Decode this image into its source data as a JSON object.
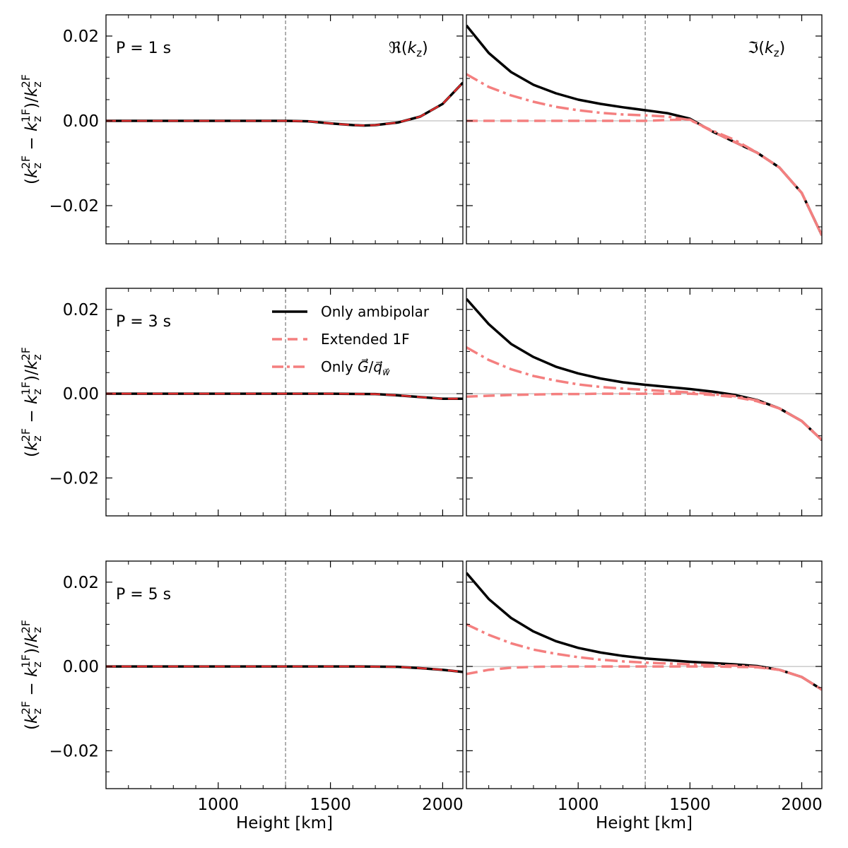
{
  "chart_data": {
    "type": "line",
    "xlabel": "Height [km]",
    "ylabel": "(k_z^2F − k_z^1F)/k_z^2F",
    "xlim": [
      500,
      2090
    ],
    "ylim": [
      -0.029,
      0.025
    ],
    "xticks": [
      "1000",
      "1500",
      "2000"
    ],
    "yticks": [
      "0.02",
      "0.00",
      "−0.02"
    ],
    "vline_x": 1300,
    "column_titles": [
      "ℜ(k_z)",
      "ℑ(k_z)"
    ],
    "legend": [
      "Only ambipolar",
      "Extended 1F",
      "Only G/q_w"
    ],
    "colors": {
      "ambipolar": "#000000",
      "extended": "#f47f7f",
      "onlyG": "#f47f7f",
      "real_overlay": "#d92b2b"
    },
    "rows": [
      {
        "period_label": "P = 1 s",
        "real": {
          "x": [
            500,
            1300,
            1400,
            1500,
            1600,
            1650,
            1700,
            1800,
            1900,
            2000,
            2090
          ],
          "ambipolar": [
            0,
            0,
            -0.0001,
            -0.0006,
            -0.001,
            -0.0011,
            -0.001,
            -0.0004,
            0.001,
            0.004,
            0.009
          ]
        },
        "imag": {
          "x": [
            500,
            600,
            700,
            800,
            900,
            1000,
            1100,
            1200,
            1300,
            1400,
            1500,
            1600,
            1700,
            1800,
            1900,
            2000,
            2090
          ],
          "ambipolar": [
            0.0225,
            0.016,
            0.0115,
            0.0085,
            0.0065,
            0.005,
            0.004,
            0.0032,
            0.0025,
            0.0018,
            0.0005,
            -0.0025,
            -0.005,
            -0.0075,
            -0.011,
            -0.017,
            -0.027
          ],
          "extended": [
            0,
            0,
            0,
            0,
            0,
            0,
            0,
            0,
            0,
            0.0002,
            0.0003,
            -0.0025,
            -0.005,
            -0.0075,
            -0.011,
            -0.017,
            -0.027
          ],
          "onlyG": [
            0.011,
            0.008,
            0.006,
            0.0045,
            0.0033,
            0.0025,
            0.0019,
            0.0015,
            0.0013,
            0.001,
            0.0002,
            -0.0023,
            -0.0045,
            -0.0075,
            -0.011,
            -0.017,
            -0.027
          ]
        }
      },
      {
        "period_label": "P = 3 s",
        "real": {
          "x": [
            500,
            1500,
            1700,
            1800,
            1900,
            2000,
            2090
          ],
          "ambipolar": [
            0,
            0,
            -0.0001,
            -0.0004,
            -0.0008,
            -0.0012,
            -0.0012
          ]
        },
        "imag": {
          "x": [
            500,
            600,
            700,
            800,
            900,
            1000,
            1100,
            1200,
            1300,
            1400,
            1500,
            1600,
            1700,
            1800,
            1900,
            2000,
            2090
          ],
          "ambipolar": [
            0.0225,
            0.0165,
            0.0118,
            0.0087,
            0.0064,
            0.0048,
            0.0036,
            0.0027,
            0.0021,
            0.0016,
            0.0011,
            0.0005,
            -0.0003,
            -0.0015,
            -0.0035,
            -0.0065,
            -0.011
          ],
          "extended": [
            -0.0007,
            -0.0005,
            -0.0003,
            -0.0002,
            -0.0001,
            -0.0001,
            0,
            0,
            0,
            0,
            0,
            -0.0003,
            -0.0008,
            -0.0018,
            -0.0035,
            -0.0065,
            -0.011
          ],
          "onlyG": [
            0.011,
            0.008,
            0.0058,
            0.0042,
            0.0031,
            0.0022,
            0.0016,
            0.0012,
            0.0009,
            0.0006,
            0.0003,
            -0.0001,
            -0.0006,
            -0.0016,
            -0.0035,
            -0.0065,
            -0.011
          ]
        }
      },
      {
        "period_label": "P = 5 s",
        "real": {
          "x": [
            500,
            1600,
            1800,
            1900,
            2000,
            2090
          ],
          "ambipolar": [
            0,
            0,
            -0.0001,
            -0.0004,
            -0.0008,
            -0.0013
          ]
        },
        "imag": {
          "x": [
            500,
            600,
            700,
            800,
            900,
            1000,
            1100,
            1200,
            1300,
            1400,
            1500,
            1600,
            1700,
            1800,
            1900,
            2000,
            2090
          ],
          "ambipolar": [
            0.0222,
            0.016,
            0.0115,
            0.0083,
            0.006,
            0.0044,
            0.0033,
            0.0025,
            0.0019,
            0.0015,
            0.0011,
            0.0008,
            0.0005,
            0.0001,
            -0.0008,
            -0.0025,
            -0.0055
          ],
          "extended": [
            -0.0018,
            -0.0008,
            -0.0003,
            -0.0001,
            0,
            0,
            0,
            0,
            0,
            0,
            0,
            0,
            -0.0001,
            -0.0002,
            -0.0008,
            -0.0025,
            -0.0055
          ],
          "onlyG": [
            0.01,
            0.0075,
            0.0055,
            0.004,
            0.003,
            0.0022,
            0.0016,
            0.0012,
            0.0009,
            0.0007,
            0.0005,
            0.0003,
            0.0002,
            -0.0001,
            -0.0008,
            -0.0025,
            -0.0055
          ]
        }
      }
    ]
  }
}
